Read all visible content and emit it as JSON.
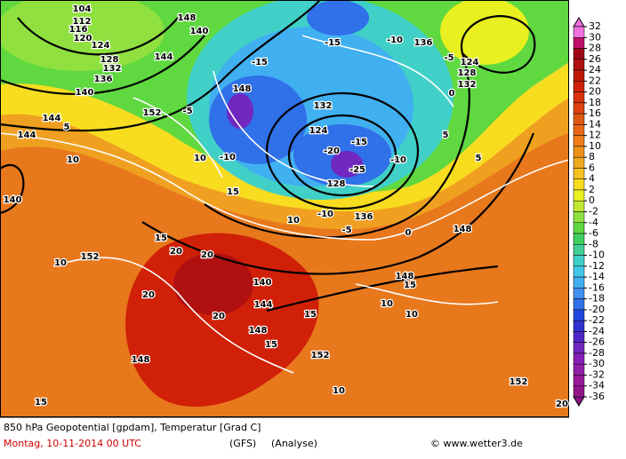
{
  "map": {
    "contour_labels": [
      "104",
      "112",
      "116",
      "120",
      "124",
      "128",
      "132",
      "136",
      "140",
      "144",
      "144",
      "5",
      "10",
      "140",
      "152",
      "144",
      "140",
      "148",
      "-5",
      "-10",
      "-15",
      "148",
      "-15",
      "-10",
      "136",
      "124",
      "128",
      "132",
      "0",
      "-5",
      "132",
      "124",
      "-20",
      "-25",
      "128",
      "-15",
      "-10",
      "136",
      "-10",
      "-5",
      "0",
      "5",
      "5",
      "148",
      "10",
      "15",
      "15",
      "10",
      "152",
      "20",
      "20",
      "140",
      "144",
      "20",
      "20",
      "15",
      "148",
      "15",
      "152",
      "10",
      "152",
      "148",
      "10",
      "10",
      "15",
      "15",
      "148",
      "20",
      "10"
    ]
  },
  "legend": {
    "labels": [
      32,
      30,
      28,
      26,
      24,
      22,
      20,
      18,
      16,
      14,
      12,
      10,
      8,
      6,
      4,
      2,
      0,
      -2,
      -4,
      -6,
      -8,
      -10,
      -12,
      -14,
      -16,
      -18,
      -20,
      -22,
      -24,
      -26,
      -28,
      -30,
      -32,
      -34,
      -36
    ],
    "colors": [
      "#f070e0",
      "#c0106a",
      "#a00818",
      "#b01010",
      "#c01808",
      "#d02008",
      "#d83008",
      "#e04010",
      "#e05810",
      "#e86818",
      "#f07c18",
      "#f09018",
      "#f0a820",
      "#f8c020",
      "#f8dc20",
      "#e8f020",
      "#c0e830",
      "#90e040",
      "#60d840",
      "#40d060",
      "#40d098",
      "#40d0c8",
      "#40c8e8",
      "#40b0f0",
      "#4090f0",
      "#3070e8",
      "#2048e0",
      "#3030d0",
      "#5028c8",
      "#7028c0",
      "#8820b8",
      "#9020a8",
      "#981898",
      "#901488"
    ]
  },
  "footer": {
    "title": "850 hPa Geopotential [gpdam], Temperatur [Grad C]",
    "date": "Montag, 10-11-2014  00 UTC",
    "model": "(GFS)",
    "run": "(Analyse)",
    "credit": "© www.wetter3.de"
  }
}
